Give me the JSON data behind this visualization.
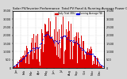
{
  "title": "Solar PV/Inverter Performance  Total PV Panel & Running Average Power Output",
  "title_fontsize": 2.8,
  "bg_color": "#d8d8d8",
  "plot_bg_color": "#ffffff",
  "bar_color": "#dd0000",
  "avg_color": "#0000dd",
  "ylim": [
    0,
    3500
  ],
  "yticks": [
    0,
    500,
    1000,
    1500,
    2000,
    2500,
    3000,
    3500
  ],
  "ytick_labels": [
    "0",
    "500",
    "1,000",
    "1,500",
    "2,000",
    "2,500",
    "3,000",
    "3,500"
  ],
  "ytick_fontsize": 2.5,
  "xtick_fontsize": 2.2,
  "n_bars": 365,
  "legend_labels": [
    "Daily Total (Wh)",
    "Running Average (W)"
  ],
  "legend_colors": [
    "#dd0000",
    "#0000dd"
  ],
  "grid_color": "#bbbbbb",
  "seed": 42
}
